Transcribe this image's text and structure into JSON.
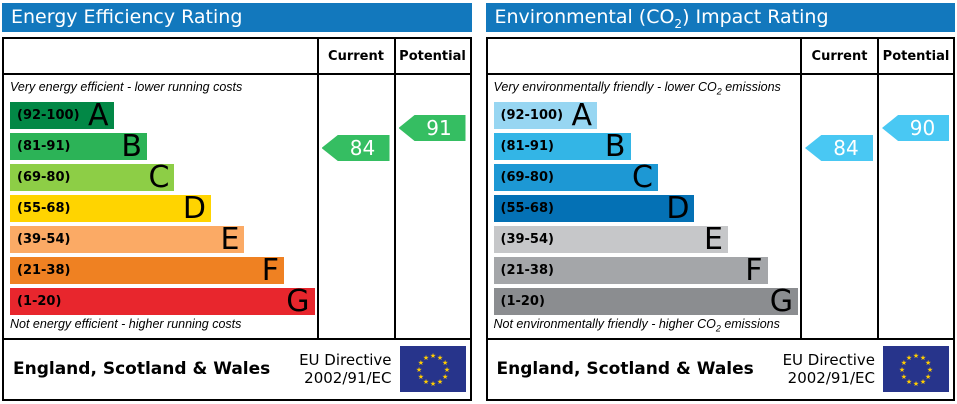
{
  "colors": {
    "header_bg": "#1278bd",
    "eu_flag_bg": "#27348b",
    "eu_star": "#ffcc00",
    "border": "#000000"
  },
  "chart_data": [
    {
      "type": "bar",
      "title": "Energy Efficiency Rating",
      "categories": [
        "A (92-100)",
        "B (81-91)",
        "C (69-80)",
        "D (55-68)",
        "E (39-54)",
        "F (21-38)",
        "G (1-20)"
      ],
      "band_colors": [
        "#028846",
        "#2cb357",
        "#8dce46",
        "#ffd400",
        "#fbaa65",
        "#ef8122",
        "#e8262d"
      ],
      "current": 84,
      "potential": 91,
      "current_band": "B",
      "potential_band": "B",
      "scale": [
        1,
        100
      ],
      "legend_position": "top-right-columns",
      "xlabel": "",
      "ylabel": ""
    },
    {
      "type": "bar",
      "title": "Environmental (CO2) Impact Rating",
      "categories": [
        "A (92-100)",
        "B (81-91)",
        "C (69-80)",
        "D (55-68)",
        "E (39-54)",
        "F (21-38)",
        "G (1-20)"
      ],
      "band_colors": [
        "#97d6f2",
        "#33b5e6",
        "#1d98d4",
        "#0471b5",
        "#c6c7c9",
        "#a4a6a9",
        "#8b8d90"
      ],
      "current": 84,
      "potential": 90,
      "current_band": "B",
      "potential_band": "B",
      "scale": [
        1,
        100
      ],
      "legend_position": "top-right-columns",
      "xlabel": "",
      "ylabel": ""
    }
  ],
  "panels": [
    {
      "title": {
        "pre": "Energy Efficiency Rating",
        "sub": "",
        "post": ""
      },
      "columns": {
        "current": "Current",
        "potential": "Potential"
      },
      "top_note": {
        "pre": "Very energy efficient - lower running costs",
        "sub": "",
        "post": ""
      },
      "bottom_note": {
        "pre": "Not energy efficient - higher running costs",
        "sub": "",
        "post": ""
      },
      "bands": [
        {
          "range": "(92-100)",
          "letter": "A",
          "color": "#028846"
        },
        {
          "range": "(81-91)",
          "letter": "B",
          "color": "#2cb357"
        },
        {
          "range": "(69-80)",
          "letter": "C",
          "color": "#8dce46"
        },
        {
          "range": "(55-68)",
          "letter": "D",
          "color": "#ffd400"
        },
        {
          "range": "(39-54)",
          "letter": "E",
          "color": "#fbaa65"
        },
        {
          "range": "(21-38)",
          "letter": "F",
          "color": "#ef8122"
        },
        {
          "range": "(1-20)",
          "letter": "G",
          "color": "#e8262d"
        }
      ],
      "current": {
        "value": "84",
        "color": "#35be62"
      },
      "potential": {
        "value": "91",
        "color": "#35be62"
      },
      "footer": {
        "region": "England, Scotland & Wales",
        "directive_line1": "EU Directive",
        "directive_line2": "2002/91/EC"
      }
    },
    {
      "title": {
        "pre": "Environmental (CO",
        "sub": "2",
        "post": ") Impact Rating"
      },
      "columns": {
        "current": "Current",
        "potential": "Potential"
      },
      "top_note": {
        "pre": "Very environmentally friendly - lower CO",
        "sub": "2",
        "post": " emissions"
      },
      "bottom_note": {
        "pre": "Not environmentally friendly - higher CO",
        "sub": "2",
        "post": " emissions"
      },
      "bands": [
        {
          "range": "(92-100)",
          "letter": "A",
          "color": "#97d6f2"
        },
        {
          "range": "(81-91)",
          "letter": "B",
          "color": "#33b5e6"
        },
        {
          "range": "(69-80)",
          "letter": "C",
          "color": "#1d98d4"
        },
        {
          "range": "(55-68)",
          "letter": "D",
          "color": "#0471b5"
        },
        {
          "range": "(39-54)",
          "letter": "E",
          "color": "#c6c7c9"
        },
        {
          "range": "(21-38)",
          "letter": "F",
          "color": "#a4a6a9"
        },
        {
          "range": "(1-20)",
          "letter": "G",
          "color": "#8b8d90"
        }
      ],
      "current": {
        "value": "84",
        "color": "#49c8f3"
      },
      "potential": {
        "value": "90",
        "color": "#49c8f3"
      },
      "footer": {
        "region": "England, Scotland & Wales",
        "directive_line1": "EU Directive",
        "directive_line2": "2002/91/EC"
      }
    }
  ]
}
